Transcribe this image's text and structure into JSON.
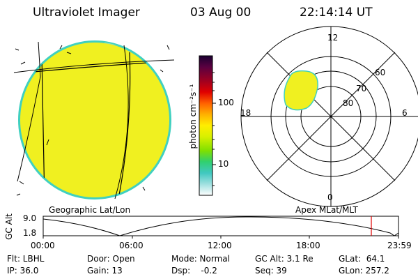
{
  "header": {
    "title": "Ultraviolet Imager",
    "date": "03 Aug 00",
    "time": "22:14:14 UT"
  },
  "colorbar": {
    "unit_label": "photon cm⁻²s⁻¹",
    "tick_100": "100",
    "tick_10": "10",
    "colors": [
      "#1a0030",
      "#5a0040",
      "#a00020",
      "#e00000",
      "#ff6000",
      "#ffb000",
      "#ffee00",
      "#d8f000",
      "#80e000",
      "#30d070",
      "#40c8c0",
      "#a0e0e0",
      "#ffffff"
    ]
  },
  "polar_plot": {
    "label_12": "12",
    "label_18": "18",
    "label_6": "6",
    "label_0": "0",
    "label_60": "60",
    "label_70": "70",
    "label_80": "80",
    "caption": "Apex MLat/MLT"
  },
  "globe": {
    "caption": "Geographic Lat/Lon",
    "fill_color": "#f0f020",
    "edge_color": "#40d0c0"
  },
  "orbit_plot": {
    "ylabel": "GC Alt",
    "y_top": "9.0",
    "y_bottom": "1.8",
    "x_ticks": [
      "00:00",
      "06:00",
      "12:00",
      "18:00",
      "23:59"
    ],
    "marker_color": "#e00000"
  },
  "info": {
    "filter": "Flt: LBHL",
    "ip": "IP: 36.0",
    "door": "Door: Open",
    "gain": "Gain: 13",
    "mode": "Mode: Normal",
    "dsp": "Dsp:    -0.2",
    "gc_alt": "GC Alt: 3.1 Re",
    "seq": "Seq: 39",
    "glat": "GLat:  64.1",
    "glon": "GLon: 257.2"
  }
}
